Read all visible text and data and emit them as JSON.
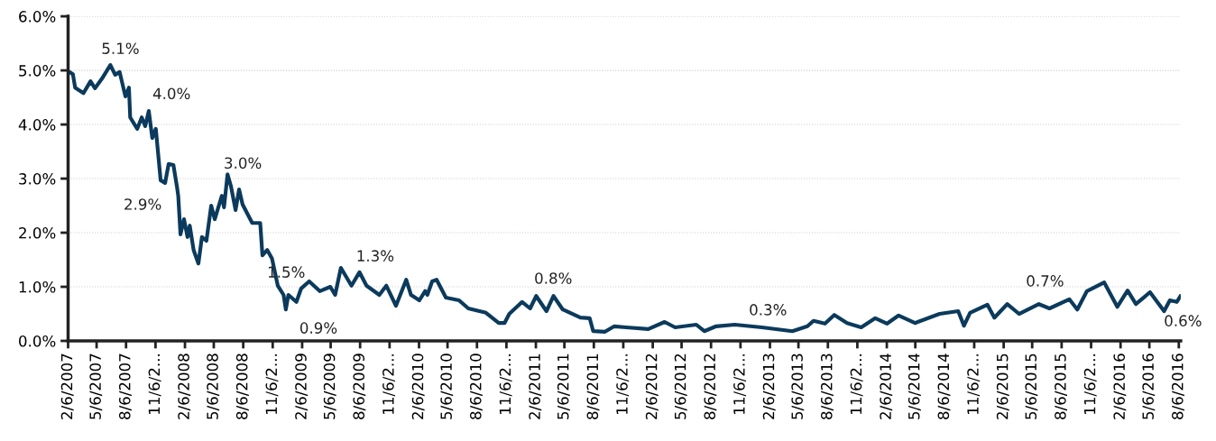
{
  "chart_data": {
    "type": "line",
    "x": [
      "2007-02-10",
      "2007-02-21",
      "2007-02-28",
      "2007-03-26",
      "2007-04-17",
      "2007-05-01",
      "2007-05-23",
      "2007-06-18",
      "2007-07-03",
      "2007-07-17",
      "2007-08-04",
      "2007-08-15",
      "2007-08-19",
      "2007-09-10",
      "2007-09-24",
      "2007-10-05",
      "2007-10-16",
      "2007-10-27",
      "2007-11-07",
      "2007-11-22",
      "2007-12-06",
      "2007-12-17",
      "2008-01-01",
      "2008-01-12",
      "2008-01-16",
      "2008-01-23",
      "2008-02-03",
      "2008-02-14",
      "2008-02-21",
      "2008-03-04",
      "2008-03-19",
      "2008-03-30",
      "2008-04-13",
      "2008-04-28",
      "2008-05-09",
      "2008-05-31",
      "2008-06-07",
      "2008-06-18",
      "2008-06-29",
      "2008-07-13",
      "2008-07-24",
      "2008-08-04",
      "2008-09-03",
      "2008-09-28",
      "2008-10-05",
      "2008-10-20",
      "2008-11-04",
      "2008-11-22",
      "2008-12-10",
      "2008-12-17",
      "2008-12-25",
      "2009-01-19",
      "2009-02-03",
      "2009-02-28",
      "2009-04-02",
      "2009-05-05",
      "2009-05-20",
      "2009-06-07",
      "2009-07-10",
      "2009-08-04",
      "2009-08-26",
      "2009-10-05",
      "2009-10-27",
      "2009-11-26",
      "2009-12-28",
      "2010-01-12",
      "2010-02-07",
      "2010-02-25",
      "2010-03-04",
      "2010-03-19",
      "2010-04-02",
      "2010-05-01",
      "2010-06-11",
      "2010-07-10",
      "2010-09-03",
      "2010-10-13",
      "2010-10-31",
      "2010-11-15",
      "2010-12-25",
      "2011-01-19",
      "2011-02-07",
      "2011-03-11",
      "2011-04-02",
      "2011-05-01",
      "2011-06-25",
      "2011-07-24",
      "2011-08-04",
      "2011-09-10",
      "2011-10-09",
      "2011-11-15",
      "2012-01-23",
      "2012-03-14",
      "2012-04-16",
      "2012-06-21",
      "2012-07-16",
      "2012-08-22",
      "2012-10-19",
      "2013-01-12",
      "2013-04-17",
      "2013-06-03",
      "2013-06-22",
      "2013-07-28",
      "2013-08-26",
      "2013-10-05",
      "2013-11-18",
      "2014-01-01",
      "2014-02-07",
      "2014-03-15",
      "2014-05-05",
      "2014-07-21",
      "2014-09-17",
      "2014-10-05",
      "2014-10-24",
      "2014-12-17",
      "2015-01-08",
      "2015-02-17",
      "2015-03-26",
      "2015-05-27",
      "2015-06-29",
      "2015-08-30",
      "2015-09-24",
      "2015-10-24",
      "2015-12-17",
      "2016-01-27",
      "2016-02-28",
      "2016-03-25",
      "2016-05-08",
      "2016-06-21",
      "2016-07-09",
      "2016-07-31",
      "2016-08-11"
    ],
    "series": [
      {
        "color": "#0b3a5c",
        "values": [
          4.97,
          4.93,
          4.68,
          4.58,
          4.8,
          4.67,
          4.85,
          5.1,
          4.92,
          4.97,
          4.52,
          4.68,
          4.13,
          3.92,
          4.13,
          3.97,
          4.25,
          3.75,
          3.92,
          2.97,
          2.92,
          3.27,
          3.25,
          2.85,
          2.68,
          1.97,
          2.25,
          1.92,
          2.13,
          1.68,
          1.43,
          1.92,
          1.85,
          2.5,
          2.25,
          2.68,
          2.47,
          3.08,
          2.85,
          2.42,
          2.8,
          2.52,
          2.18,
          2.18,
          1.58,
          1.68,
          1.52,
          1.02,
          0.85,
          0.58,
          0.85,
          0.72,
          0.97,
          1.1,
          0.92,
          1.0,
          0.85,
          1.35,
          1.02,
          1.27,
          1.02,
          0.85,
          1.02,
          0.65,
          1.13,
          0.85,
          0.75,
          0.92,
          0.85,
          1.1,
          1.13,
          0.8,
          0.75,
          0.6,
          0.52,
          0.33,
          0.33,
          0.5,
          0.72,
          0.6,
          0.83,
          0.55,
          0.83,
          0.58,
          0.43,
          0.42,
          0.18,
          0.17,
          0.27,
          0.25,
          0.22,
          0.35,
          0.25,
          0.3,
          0.18,
          0.27,
          0.3,
          0.25,
          0.18,
          0.27,
          0.37,
          0.32,
          0.48,
          0.33,
          0.25,
          0.42,
          0.32,
          0.47,
          0.33,
          0.5,
          0.55,
          0.28,
          0.52,
          0.67,
          0.43,
          0.68,
          0.5,
          0.68,
          0.6,
          0.77,
          0.58,
          0.92,
          1.08,
          0.63,
          0.93,
          0.68,
          0.9,
          0.55,
          0.75,
          0.72,
          0.83
        ]
      }
    ],
    "xlim": [
      "2007-02-06",
      "2016-08-12"
    ],
    "xticks": [
      {
        "value": "2007-02-06",
        "label": "2/6/2007"
      },
      {
        "value": "2007-05-06",
        "label": "5/6/2007"
      },
      {
        "value": "2007-08-06",
        "label": "8/6/2007"
      },
      {
        "value": "2007-11-06",
        "label": "11/6/2..."
      },
      {
        "value": "2008-02-06",
        "label": "2/6/2008"
      },
      {
        "value": "2008-05-06",
        "label": "5/6/2008"
      },
      {
        "value": "2008-08-06",
        "label": "8/6/2008"
      },
      {
        "value": "2008-11-06",
        "label": "11/6/2..."
      },
      {
        "value": "2009-02-06",
        "label": "2/6/2009"
      },
      {
        "value": "2009-05-06",
        "label": "5/6/2009"
      },
      {
        "value": "2009-08-06",
        "label": "8/6/2009"
      },
      {
        "value": "2009-11-06",
        "label": "11/6/2..."
      },
      {
        "value": "2010-02-06",
        "label": "2/6/2010"
      },
      {
        "value": "2010-05-06",
        "label": "5/6/2010"
      },
      {
        "value": "2010-08-06",
        "label": "8/6/2010"
      },
      {
        "value": "2010-11-06",
        "label": "11/6/2..."
      },
      {
        "value": "2011-02-06",
        "label": "2/6/2011"
      },
      {
        "value": "2011-05-06",
        "label": "5/6/2011"
      },
      {
        "value": "2011-08-06",
        "label": "8/6/2011"
      },
      {
        "value": "2011-11-06",
        "label": "11/6/2..."
      },
      {
        "value": "2012-02-06",
        "label": "2/6/2012"
      },
      {
        "value": "2012-05-06",
        "label": "5/6/2012"
      },
      {
        "value": "2012-08-06",
        "label": "8/6/2012"
      },
      {
        "value": "2012-11-06",
        "label": "11/6/2..."
      },
      {
        "value": "2013-02-06",
        "label": "2/6/2013"
      },
      {
        "value": "2013-05-06",
        "label": "5/6/2013"
      },
      {
        "value": "2013-08-06",
        "label": "8/6/2013"
      },
      {
        "value": "2013-11-06",
        "label": "11/6/2..."
      },
      {
        "value": "2014-02-06",
        "label": "2/6/2014"
      },
      {
        "value": "2014-05-06",
        "label": "5/6/2014"
      },
      {
        "value": "2014-08-06",
        "label": "8/6/2014"
      },
      {
        "value": "2014-11-06",
        "label": "11/6/2..."
      },
      {
        "value": "2015-02-06",
        "label": "2/6/2015"
      },
      {
        "value": "2015-05-06",
        "label": "5/6/2015"
      },
      {
        "value": "2015-08-06",
        "label": "8/6/2015"
      },
      {
        "value": "2015-11-06",
        "label": "11/6/2..."
      },
      {
        "value": "2016-02-06",
        "label": "2/6/2016"
      },
      {
        "value": "2016-05-06",
        "label": "5/6/2016"
      },
      {
        "value": "2016-08-06",
        "label": "8/6/2016"
      }
    ],
    "ylim": [
      0,
      6
    ],
    "yticks": [
      {
        "value": 0,
        "label": "0.0%"
      },
      {
        "value": 1,
        "label": "1.0%"
      },
      {
        "value": 2,
        "label": "2.0%"
      },
      {
        "value": 3,
        "label": "3.0%"
      },
      {
        "value": 4,
        "label": "4.0%"
      },
      {
        "value": 5,
        "label": "5.0%"
      },
      {
        "value": 6,
        "label": "6.0%"
      }
    ],
    "grid": "y",
    "legend": false,
    "annotations": [
      "5.1%",
      "4.0%",
      "3.0%",
      "2.9%",
      "1.5%",
      "0.9%",
      "1.3%",
      "0.8%",
      "0.3%",
      "0.7%",
      "0.6%"
    ]
  }
}
